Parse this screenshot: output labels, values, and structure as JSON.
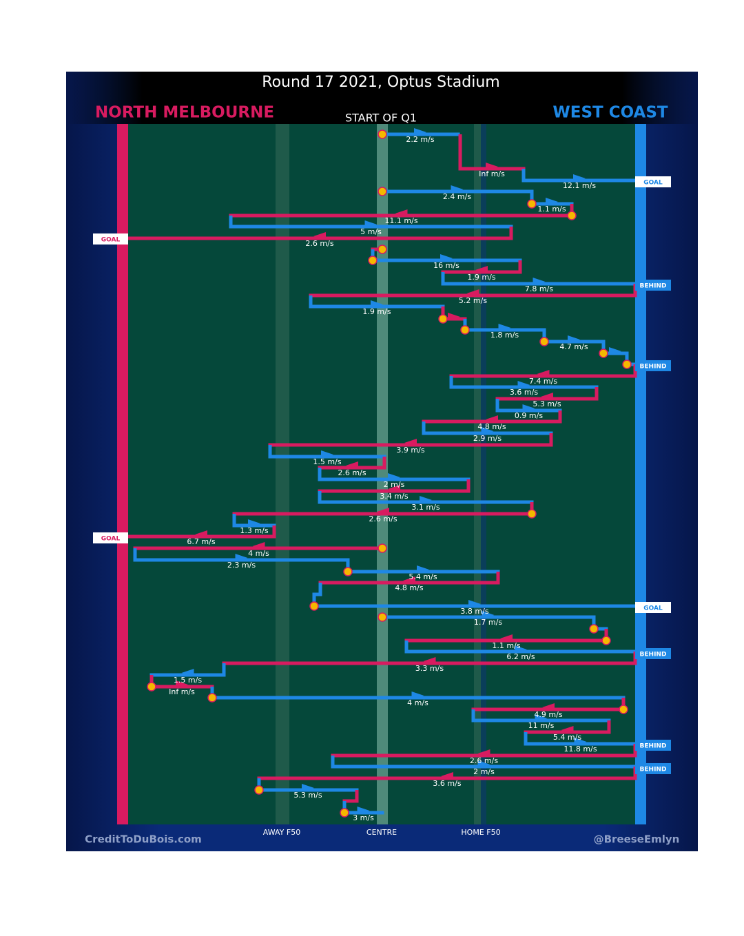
{
  "header": {
    "title": "Round 17 2021, Optus Stadium",
    "home_team": "NORTH MELBOURNE",
    "away_team": "WEST COAST",
    "period": "START OF Q1"
  },
  "speeds": [
    "2.2 m/s",
    "Inf m/s",
    "12.1 m/s",
    "2.4 m/s",
    "1.1 m/s",
    "11.1 m/s",
    "5 m/s",
    "2.6 m/s",
    "16 m/s",
    "1.9 m/s",
    "7.8 m/s",
    "5.2 m/s",
    "1.9 m/s",
    "1.8 m/s",
    "4.7 m/s",
    "7.4 m/s",
    "3.6 m/s",
    "5.3 m/s",
    "0.9 m/s",
    "4.8 m/s",
    "2.9 m/s",
    "3.9 m/s",
    "1.5 m/s",
    "2.6 m/s",
    "2 m/s",
    "3.4 m/s",
    "3.1 m/s",
    "2.6 m/s",
    "1.3 m/s",
    "6.7 m/s",
    "4 m/s",
    "2.3 m/s",
    "5.4 m/s",
    "4.8 m/s",
    "3.8 m/s",
    "1.7 m/s",
    "1.1 m/s",
    "6.2 m/s",
    "3.3 m/s",
    "1.5 m/s",
    "Inf m/s",
    "4 m/s",
    "4.9 m/s",
    "11 m/s",
    "5.4 m/s",
    "11.8 m/s",
    "2.6 m/s",
    "2 m/s",
    "3.6 m/s",
    "5.3 m/s",
    "3 m/s"
  ],
  "outcomes": [
    "GOAL",
    "GOAL",
    "BEHIND",
    "BEHIND",
    "GOAL",
    "GOAL",
    "BEHIND",
    "BEHIND",
    "BEHIND"
  ],
  "field_labels": [
    "AWAY F50",
    "CENTRE",
    "HOME F50"
  ],
  "footer": {
    "left": "CreditToDuBois.com",
    "right": "@BreeseEmlyn"
  }
}
